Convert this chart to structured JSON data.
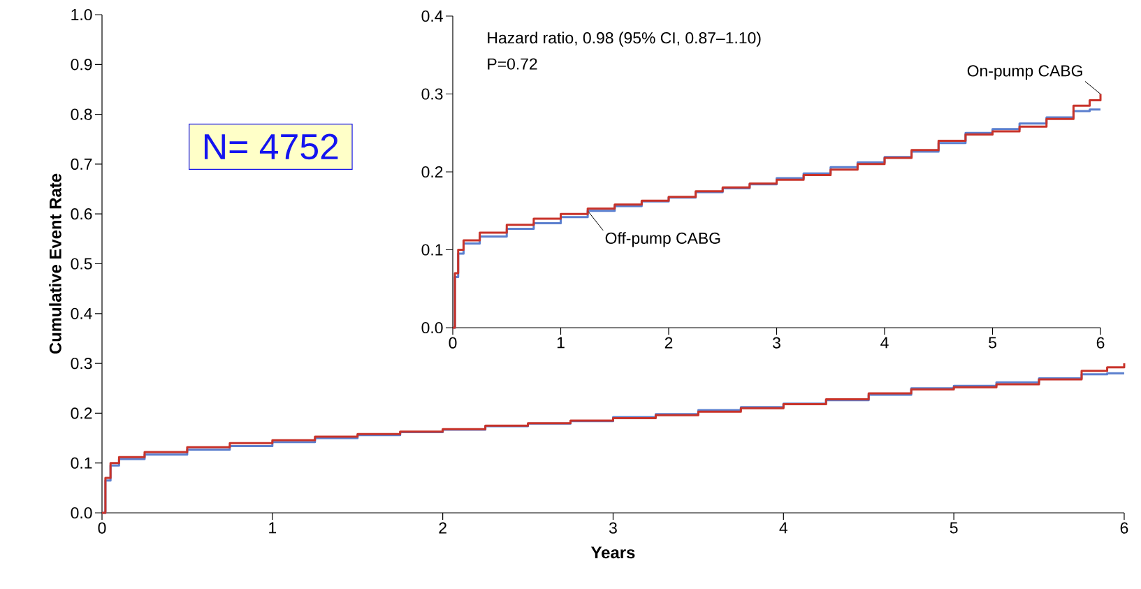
{
  "chart_data": [
    {
      "type": "step",
      "xlabel": "Years",
      "ylabel": "Cumulative Event Rate",
      "xlim": [
        0,
        6
      ],
      "xticks": [
        0,
        1,
        2,
        3,
        4,
        5,
        6
      ],
      "ylim": [
        0,
        1
      ],
      "yticks": [
        {
          "value": 0,
          "label": "0.0"
        },
        {
          "value": 0.1,
          "label": "0.1"
        },
        {
          "value": 0.2,
          "label": "0.2"
        },
        {
          "value": 0.3,
          "label": "0.3"
        },
        {
          "value": 0.4,
          "label": "0.4"
        },
        {
          "value": 0.5,
          "label": "0.5"
        },
        {
          "value": 0.6,
          "label": "0.6"
        },
        {
          "value": 0.7,
          "label": "0.7"
        },
        {
          "value": 0.8,
          "label": "0.8"
        },
        {
          "value": 0.9,
          "label": "0.9"
        },
        {
          "value": 1,
          "label": "1.0"
        }
      ],
      "x": [
        0,
        0.02,
        0.05,
        0.1,
        0.25,
        0.5,
        0.75,
        1.0,
        1.25,
        1.5,
        1.75,
        2.0,
        2.25,
        2.5,
        2.75,
        3.0,
        3.25,
        3.5,
        3.75,
        4.0,
        4.25,
        4.5,
        4.75,
        5.0,
        5.25,
        5.5,
        5.75,
        5.9,
        6.0
      ],
      "series": [
        {
          "color": "#5b7fce",
          "values": [
            0,
            0.065,
            0.095,
            0.108,
            0.117,
            0.127,
            0.134,
            0.142,
            0.15,
            0.156,
            0.162,
            0.167,
            0.174,
            0.179,
            0.184,
            0.192,
            0.198,
            0.206,
            0.212,
            0.219,
            0.226,
            0.237,
            0.25,
            0.255,
            0.262,
            0.27,
            0.278,
            0.28,
            0.28
          ]
        },
        {
          "color": "#c8332a",
          "values": [
            0,
            0.07,
            0.1,
            0.112,
            0.122,
            0.132,
            0.14,
            0.146,
            0.153,
            0.158,
            0.163,
            0.168,
            0.175,
            0.18,
            0.185,
            0.19,
            0.196,
            0.203,
            0.21,
            0.218,
            0.228,
            0.24,
            0.248,
            0.252,
            0.258,
            0.268,
            0.285,
            0.292,
            0.3
          ]
        }
      ],
      "annotations": [
        "N= 4752"
      ]
    },
    {
      "type": "step",
      "xlim": [
        0,
        6
      ],
      "xticks": [
        0,
        1,
        2,
        3,
        4,
        5,
        6
      ],
      "ylim": [
        0,
        0.4
      ],
      "yticks": [
        {
          "value": 0,
          "label": "0.0"
        },
        {
          "value": 0.1,
          "label": "0.1"
        },
        {
          "value": 0.2,
          "label": "0.2"
        },
        {
          "value": 0.3,
          "label": "0.3"
        },
        {
          "value": 0.4,
          "label": "0.4"
        }
      ],
      "x": [
        0,
        0.02,
        0.05,
        0.1,
        0.25,
        0.5,
        0.75,
        1.0,
        1.25,
        1.5,
        1.75,
        2.0,
        2.25,
        2.5,
        2.75,
        3.0,
        3.25,
        3.5,
        3.75,
        4.0,
        4.25,
        4.5,
        4.75,
        5.0,
        5.25,
        5.5,
        5.75,
        5.9,
        6.0
      ],
      "series": [
        {
          "name": "Off-pump CABG",
          "color": "#5b7fce",
          "values": [
            0,
            0.065,
            0.095,
            0.108,
            0.117,
            0.127,
            0.134,
            0.142,
            0.15,
            0.156,
            0.162,
            0.167,
            0.174,
            0.179,
            0.184,
            0.192,
            0.198,
            0.206,
            0.212,
            0.219,
            0.226,
            0.237,
            0.25,
            0.255,
            0.262,
            0.27,
            0.278,
            0.28,
            0.28
          ]
        },
        {
          "name": "On-pump CABG",
          "color": "#c8332a",
          "values": [
            0,
            0.07,
            0.1,
            0.112,
            0.122,
            0.132,
            0.14,
            0.146,
            0.153,
            0.158,
            0.163,
            0.168,
            0.175,
            0.18,
            0.185,
            0.19,
            0.196,
            0.203,
            0.21,
            0.218,
            0.228,
            0.24,
            0.248,
            0.252,
            0.258,
            0.268,
            0.285,
            0.292,
            0.3
          ]
        }
      ],
      "annotations": [
        "Hazard ratio, 0.98 (95% CI, 0.87–1.10)",
        "P=0.72"
      ]
    }
  ]
}
